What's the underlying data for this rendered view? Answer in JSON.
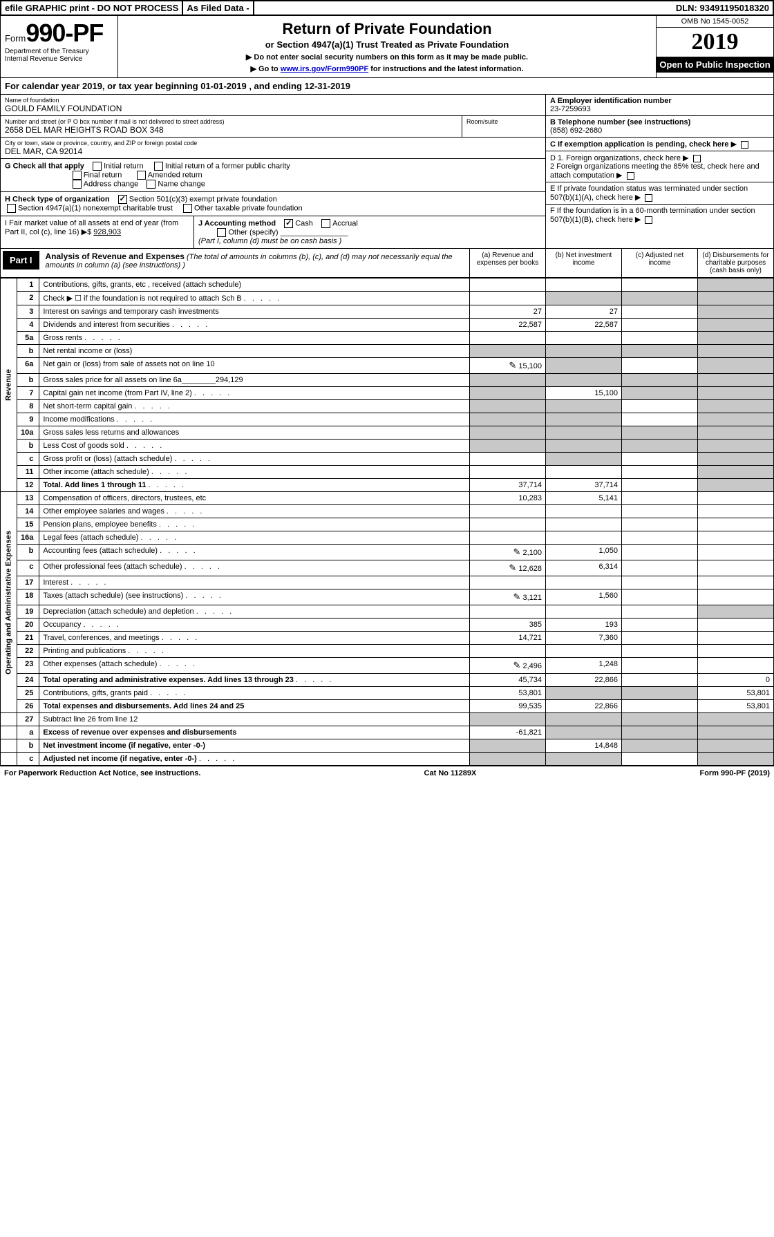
{
  "topbar": {
    "efile": "efile GRAPHIC print - DO NOT PROCESS",
    "asfiled": "As Filed Data -",
    "dln": "DLN: 93491195018320"
  },
  "header": {
    "form_prefix": "Form",
    "form_number": "990-PF",
    "dept": "Department of the Treasury",
    "irs": "Internal Revenue Service",
    "title": "Return of Private Foundation",
    "subtitle": "or Section 4947(a)(1) Trust Treated as Private Foundation",
    "note1": "▶ Do not enter social security numbers on this form as it may be made public.",
    "note2_pre": "▶ Go to ",
    "note2_link": "www.irs.gov/Form990PF",
    "note2_post": " for instructions and the latest information.",
    "omb": "OMB No 1545-0052",
    "year": "2019",
    "open": "Open to Public Inspection"
  },
  "calyear": "For calendar year 2019, or tax year beginning 01-01-2019           , and ending 12-31-2019",
  "entity": {
    "name_lbl": "Name of foundation",
    "name": "GOULD FAMILY FOUNDATION",
    "addr_lbl": "Number and street (or P O  box number if mail is not delivered to street address)",
    "addr": "2658 DEL MAR HEIGHTS ROAD BOX 348",
    "room_lbl": "Room/suite",
    "city_lbl": "City or town, state or province, country, and ZIP or foreign postal code",
    "city": "DEL MAR, CA  92014",
    "a_lbl": "A Employer identification number",
    "a_val": "23-7259693",
    "b_lbl": "B Telephone number (see instructions)",
    "b_val": "(858) 692-2680",
    "c_lbl": "C If exemption application is pending, check here"
  },
  "g": {
    "label": "G Check all that apply",
    "opts": [
      "Initial return",
      "Initial return of a former public charity",
      "Final return",
      "Amended return",
      "Address change",
      "Name change"
    ]
  },
  "h": {
    "label": "H Check type of organization",
    "opt1": "Section 501(c)(3) exempt private foundation",
    "opt2": "Section 4947(a)(1) nonexempt charitable trust",
    "opt3": "Other taxable private foundation"
  },
  "d": {
    "d1": "D 1. Foreign organizations, check here",
    "d2": "2 Foreign organizations meeting the 85% test, check here and attach computation",
    "e": "E  If private foundation status was terminated under section 507(b)(1)(A), check here",
    "f": "F  If the foundation is in a 60-month termination under section 507(b)(1)(B), check here"
  },
  "i": {
    "label": "I Fair market value of all assets at end of year (from Part II, col  (c), line 16) ▶$",
    "val": "928,903"
  },
  "j": {
    "label": "J Accounting method",
    "cash": "Cash",
    "accrual": "Accrual",
    "other": "Other (specify)",
    "note": "(Part I, column (d) must be on cash basis )"
  },
  "part1": {
    "label": "Part I",
    "title": "Analysis of Revenue and Expenses",
    "desc": "(The total of amounts in columns (b), (c), and (d) may not necessarily equal the amounts in column (a) (see instructions) )",
    "col_a": "(a) Revenue and expenses per books",
    "col_b": "(b) Net investment income",
    "col_c": "(c) Adjusted net income",
    "col_d": "(d) Disbursements for charitable purposes (cash basis only)"
  },
  "sections": {
    "revenue": "Revenue",
    "expenses": "Operating and Administrative Expenses"
  },
  "rows": [
    {
      "n": "1",
      "d": "Contributions, gifts, grants, etc , received (attach schedule)",
      "a": "",
      "b": "",
      "c": "",
      "dd": "",
      "grey_d": true
    },
    {
      "n": "2",
      "d": "Check ▶ ☐ if the foundation is not required to attach Sch  B",
      "dots": true,
      "a": "",
      "b": "",
      "c": "",
      "dd": "",
      "grey_b": true,
      "grey_c": true,
      "grey_d": true
    },
    {
      "n": "3",
      "d": "Interest on savings and temporary cash investments",
      "a": "27",
      "b": "27",
      "c": "",
      "dd": "",
      "grey_d": true
    },
    {
      "n": "4",
      "d": "Dividends and interest from securities",
      "dots": true,
      "a": "22,587",
      "b": "22,587",
      "c": "",
      "dd": "",
      "grey_d": true
    },
    {
      "n": "5a",
      "d": "Gross rents",
      "dots": true,
      "a": "",
      "b": "",
      "c": "",
      "dd": "",
      "grey_d": true
    },
    {
      "n": "b",
      "d": "Net rental income or (loss)",
      "line": true,
      "a": "",
      "b": "",
      "c": "",
      "dd": "",
      "grey_a": true,
      "grey_b": true,
      "grey_c": true,
      "grey_d": true
    },
    {
      "n": "6a",
      "d": "Net gain or (loss) from sale of assets not on line 10",
      "icon": true,
      "a": "15,100",
      "b": "",
      "c": "",
      "dd": "",
      "grey_b": true,
      "grey_d": true
    },
    {
      "n": "b",
      "d": "Gross sales price for all assets on line 6a________294,129",
      "a": "",
      "b": "",
      "c": "",
      "dd": "",
      "grey_a": true,
      "grey_b": true,
      "grey_c": true,
      "grey_d": true
    },
    {
      "n": "7",
      "d": "Capital gain net income (from Part IV, line 2)",
      "dots": true,
      "a": "",
      "b": "15,100",
      "c": "",
      "dd": "",
      "grey_a": true,
      "grey_c": true,
      "grey_d": true
    },
    {
      "n": "8",
      "d": "Net short-term capital gain",
      "dots": true,
      "a": "",
      "b": "",
      "c": "",
      "dd": "",
      "grey_a": true,
      "grey_b": true,
      "grey_d": true
    },
    {
      "n": "9",
      "d": "Income modifications",
      "dots": true,
      "a": "",
      "b": "",
      "c": "",
      "dd": "",
      "grey_a": true,
      "grey_b": true,
      "grey_d": true
    },
    {
      "n": "10a",
      "d": "Gross sales less returns and allowances",
      "line": true,
      "a": "",
      "b": "",
      "c": "",
      "dd": "",
      "grey_a": true,
      "grey_b": true,
      "grey_c": true,
      "grey_d": true
    },
    {
      "n": "b",
      "d": "Less  Cost of goods sold",
      "dots": true,
      "line": true,
      "a": "",
      "b": "",
      "c": "",
      "dd": "",
      "grey_a": true,
      "grey_b": true,
      "grey_c": true,
      "grey_d": true
    },
    {
      "n": "c",
      "d": "Gross profit or (loss) (attach schedule)",
      "dots": true,
      "a": "",
      "b": "",
      "c": "",
      "dd": "",
      "grey_b": true,
      "grey_d": true
    },
    {
      "n": "11",
      "d": "Other income (attach schedule)",
      "dots": true,
      "a": "",
      "b": "",
      "c": "",
      "dd": "",
      "grey_d": true
    },
    {
      "n": "12",
      "d": "Total. Add lines 1 through 11",
      "dots": true,
      "bold": true,
      "a": "37,714",
      "b": "37,714",
      "c": "",
      "dd": "",
      "grey_d": true
    }
  ],
  "exp_rows": [
    {
      "n": "13",
      "d": "Compensation of officers, directors, trustees, etc",
      "a": "10,283",
      "b": "5,141",
      "c": "",
      "dd": ""
    },
    {
      "n": "14",
      "d": "Other employee salaries and wages",
      "dots": true,
      "a": "",
      "b": "",
      "c": "",
      "dd": ""
    },
    {
      "n": "15",
      "d": "Pension plans, employee benefits",
      "dots": true,
      "a": "",
      "b": "",
      "c": "",
      "dd": ""
    },
    {
      "n": "16a",
      "d": "Legal fees (attach schedule)",
      "dots": true,
      "a": "",
      "b": "",
      "c": "",
      "dd": ""
    },
    {
      "n": "b",
      "d": "Accounting fees (attach schedule)",
      "dots": true,
      "icon": true,
      "a": "2,100",
      "b": "1,050",
      "c": "",
      "dd": ""
    },
    {
      "n": "c",
      "d": "Other professional fees (attach schedule)",
      "dots": true,
      "icon": true,
      "a": "12,628",
      "b": "6,314",
      "c": "",
      "dd": ""
    },
    {
      "n": "17",
      "d": "Interest",
      "dots": true,
      "a": "",
      "b": "",
      "c": "",
      "dd": ""
    },
    {
      "n": "18",
      "d": "Taxes (attach schedule) (see instructions)",
      "dots": true,
      "icon": true,
      "a": "3,121",
      "b": "1,560",
      "c": "",
      "dd": ""
    },
    {
      "n": "19",
      "d": "Depreciation (attach schedule) and depletion",
      "dots": true,
      "a": "",
      "b": "",
      "c": "",
      "dd": "",
      "grey_d": true
    },
    {
      "n": "20",
      "d": "Occupancy",
      "dots": true,
      "a": "385",
      "b": "193",
      "c": "",
      "dd": ""
    },
    {
      "n": "21",
      "d": "Travel, conferences, and meetings",
      "dots": true,
      "a": "14,721",
      "b": "7,360",
      "c": "",
      "dd": ""
    },
    {
      "n": "22",
      "d": "Printing and publications",
      "dots": true,
      "a": "",
      "b": "",
      "c": "",
      "dd": ""
    },
    {
      "n": "23",
      "d": "Other expenses (attach schedule)",
      "dots": true,
      "icon": true,
      "a": "2,496",
      "b": "1,248",
      "c": "",
      "dd": ""
    },
    {
      "n": "24",
      "d": "Total operating and administrative expenses. Add lines 13 through 23",
      "dots": true,
      "bold": true,
      "a": "45,734",
      "b": "22,866",
      "c": "",
      "dd": "0"
    },
    {
      "n": "25",
      "d": "Contributions, gifts, grants paid",
      "dots": true,
      "a": "53,801",
      "b": "",
      "c": "",
      "dd": "53,801",
      "grey_b": true,
      "grey_c": true
    },
    {
      "n": "26",
      "d": "Total expenses and disbursements. Add lines 24 and 25",
      "bold": true,
      "a": "99,535",
      "b": "22,866",
      "c": "",
      "dd": "53,801"
    }
  ],
  "net_rows": [
    {
      "n": "27",
      "d": "Subtract line 26 from line 12",
      "a": "",
      "b": "",
      "c": "",
      "dd": "",
      "grey_a": true,
      "grey_b": true,
      "grey_c": true,
      "grey_d": true
    },
    {
      "n": "a",
      "d": "Excess of revenue over expenses and disbursements",
      "bold": true,
      "a": "-61,821",
      "b": "",
      "c": "",
      "dd": "",
      "grey_b": true,
      "grey_c": true,
      "grey_d": true
    },
    {
      "n": "b",
      "d": "Net investment income (if negative, enter -0-)",
      "bold": true,
      "a": "",
      "b": "14,848",
      "c": "",
      "dd": "",
      "grey_a": true,
      "grey_c": true,
      "grey_d": true
    },
    {
      "n": "c",
      "d": "Adjusted net income (if negative, enter -0-)",
      "dots": true,
      "bold": true,
      "a": "",
      "b": "",
      "c": "",
      "dd": "",
      "grey_a": true,
      "grey_b": true,
      "grey_d": true
    }
  ],
  "footer": {
    "left": "For Paperwork Reduction Act Notice, see instructions.",
    "mid": "Cat  No  11289X",
    "right": "Form 990-PF (2019)"
  }
}
